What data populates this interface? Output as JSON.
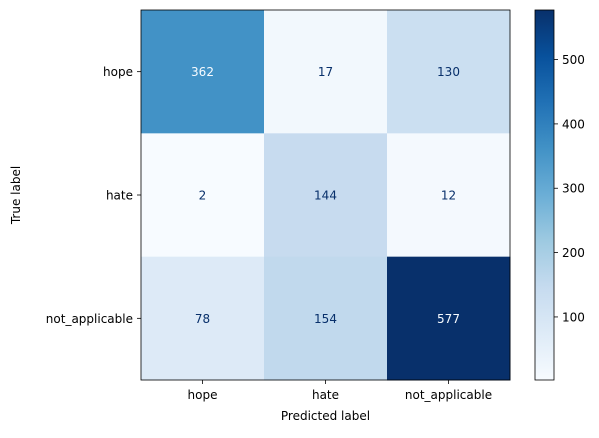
{
  "chart_data": {
    "type": "heatmap",
    "title": "",
    "xlabel": "Predicted label",
    "ylabel": "True label",
    "x_categories": [
      "hope",
      "hate",
      "not_applicable"
    ],
    "y_categories": [
      "hope",
      "hate",
      "not_applicable"
    ],
    "values": [
      [
        362,
        17,
        130
      ],
      [
        2,
        144,
        12
      ],
      [
        78,
        154,
        577
      ]
    ],
    "colormap": "Blues",
    "vmin": 2,
    "vmax": 577,
    "colorbar_ticks": [
      100,
      200,
      300,
      400,
      500
    ],
    "grid": false
  }
}
